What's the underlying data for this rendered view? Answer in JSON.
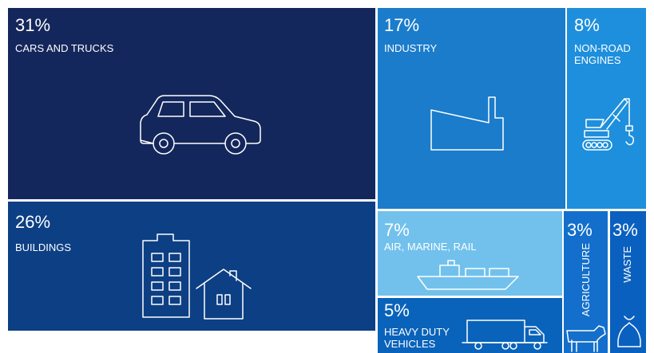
{
  "chart_data": {
    "type": "treemap",
    "title": "",
    "unit": "%",
    "categories": [
      "CARS AND TRUCKS",
      "BUILDINGS",
      "INDUSTRY",
      "NON-ROAD ENGINES",
      "AIR, MARINE, RAIL",
      "HEAVY DUTY VEHICLES",
      "AGRICULTURE",
      "WASTE"
    ],
    "values": [
      31,
      26,
      17,
      8,
      7,
      5,
      3,
      3
    ],
    "labels": [
      "31%",
      "26%",
      "17%",
      "8%",
      "7%",
      "5%",
      "3%",
      "3%"
    ]
  },
  "colors": {
    "cars": "#14275c",
    "buildings": "#0d3f84",
    "industry": "#1a7ccb",
    "nonroad": "#1e8fdc",
    "air": "#72c1ec",
    "heavy": "#0a63ba",
    "agriculture": "#136fcb",
    "waste": "#0a60bf",
    "divider": "#ffffff"
  },
  "icons": [
    "car-icon",
    "building-icon",
    "house-icon",
    "factory-icon",
    "crane-icon",
    "ship-icon",
    "truck-icon",
    "cow-icon",
    "garbage-bag-icon"
  ],
  "tiles": {
    "cars": {
      "pct": "31%",
      "label": "CARS AND TRUCKS"
    },
    "buildings": {
      "pct": "26%",
      "label": "BUILDINGS"
    },
    "industry": {
      "pct": "17%",
      "label": "INDUSTRY"
    },
    "nonroad": {
      "pct": "8%",
      "label": "NON-ROAD ENGINES"
    },
    "air": {
      "pct": "7%",
      "label": "AIR, MARINE, RAIL"
    },
    "heavy": {
      "pct": "5%",
      "label": "HEAVY DUTY VEHICLES"
    },
    "agriculture": {
      "pct": "3%",
      "label": "AGRICULTURE"
    },
    "waste": {
      "pct": "3%",
      "label": "WASTE"
    }
  }
}
